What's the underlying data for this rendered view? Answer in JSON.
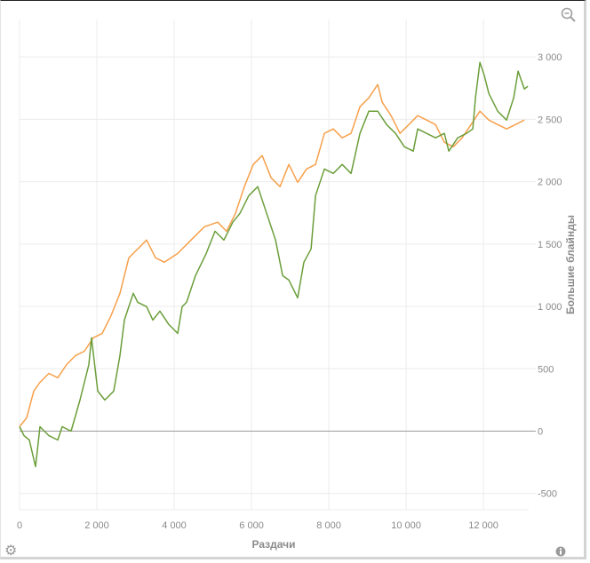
{
  "chart_data": {
    "type": "line",
    "xlabel": "Раздачи",
    "ylabel": "Большие блайнды",
    "xlim": [
      0,
      13170
    ],
    "ylim": [
      -630,
      3300
    ],
    "xticks": [
      0,
      2000,
      4000,
      6000,
      8000,
      10000,
      12000
    ],
    "xtick_labels": [
      "0",
      "2 000",
      "4 000",
      "6 000",
      "8 000",
      "10 000",
      "12 000"
    ],
    "yticks": [
      -500,
      0,
      500,
      1000,
      1500,
      2000,
      2500,
      3000
    ],
    "ytick_labels": [
      "-500",
      "0",
      "500",
      "1 000",
      "1 500",
      "2 000",
      "2 500",
      "3 000"
    ],
    "grid": true,
    "legend": "none",
    "series": [
      {
        "name": "orange",
        "color": "#f7a04b",
        "x": [
          0,
          184,
          368,
          529,
          759,
          989,
          1218,
          1448,
          1678,
          1908,
          2138,
          2368,
          2598,
          2828,
          2943,
          3287,
          3517,
          3747,
          4092,
          4437,
          4782,
          5126,
          5356,
          5586,
          5816,
          6046,
          6276,
          6506,
          6736,
          6966,
          7195,
          7425,
          7655,
          7885,
          8115,
          8345,
          8575,
          8805,
          9034,
          9264,
          9379,
          9609,
          9839,
          10069,
          10299,
          10529,
          10759,
          10989,
          11218,
          11448,
          11678,
          11908,
          12138,
          12368,
          12598,
          12828,
          13057
        ],
        "y": [
          36,
          107,
          321,
          392,
          463,
          428,
          534,
          606,
          641,
          748,
          784,
          926,
          1105,
          1390,
          1425,
          1532,
          1390,
          1354,
          1425,
          1532,
          1639,
          1675,
          1603,
          1746,
          1960,
          2138,
          2209,
          2031,
          1960,
          2138,
          1995,
          2102,
          2138,
          2387,
          2423,
          2352,
          2387,
          2601,
          2672,
          2779,
          2637,
          2530,
          2387,
          2458,
          2530,
          2494,
          2458,
          2316,
          2280,
          2352,
          2458,
          2565,
          2494,
          2458,
          2423,
          2458,
          2494
        ]
      },
      {
        "name": "green",
        "color": "#6b9e3a",
        "x": [
          0,
          115,
          253,
          414,
          529,
          759,
          989,
          1103,
          1333,
          1563,
          1793,
          1862,
          2023,
          2207,
          2437,
          2598,
          2713,
          2943,
          3057,
          3287,
          3448,
          3632,
          3862,
          4092,
          4207,
          4322,
          4552,
          4828,
          5057,
          5287,
          5517,
          5701,
          5931,
          6161,
          6391,
          6621,
          6805,
          6966,
          7195,
          7356,
          7540,
          7655,
          7885,
          8115,
          8345,
          8575,
          8805,
          9034,
          9264,
          9494,
          9724,
          9954,
          10184,
          10299,
          10529,
          10759,
          10989,
          11103,
          11333,
          11563,
          11724,
          11793,
          11908,
          12023,
          12138,
          12368,
          12598,
          12782,
          12897,
          13057,
          13149
        ],
        "y": [
          36,
          -36,
          -71,
          -285,
          36,
          -36,
          -71,
          36,
          0,
          249,
          534,
          748,
          321,
          249,
          321,
          606,
          891,
          1105,
          1033,
          998,
          891,
          962,
          855,
          784,
          998,
          1033,
          1247,
          1425,
          1603,
          1532,
          1675,
          1746,
          1888,
          1960,
          1746,
          1532,
          1247,
          1211,
          1069,
          1354,
          1461,
          1888,
          2102,
          2066,
          2138,
          2066,
          2387,
          2565,
          2565,
          2458,
          2387,
          2280,
          2245,
          2423,
          2387,
          2352,
          2387,
          2245,
          2352,
          2387,
          2423,
          2672,
          2957,
          2850,
          2708,
          2565,
          2494,
          2672,
          2886,
          2743,
          2765
        ]
      }
    ]
  },
  "icons": {
    "zoom": "zoom-out-icon",
    "settings": "gear-icon",
    "info": "info-icon"
  }
}
